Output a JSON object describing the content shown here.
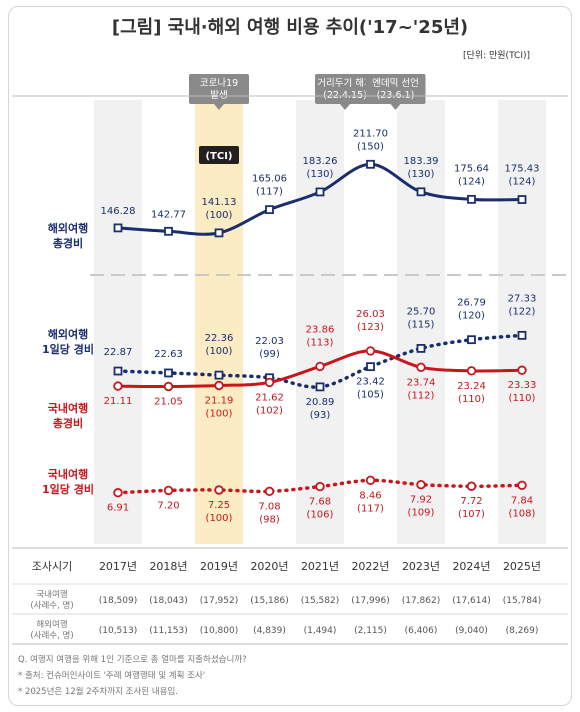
{
  "title": "[그림] 국내·해외 여행 비용 추이('17~'25년)",
  "unit": "[단위: 만원(TCI)]",
  "callouts": {
    "covid": [
      "코로나19",
      "발생"
    ],
    "distancing": [
      "거리두기 해제",
      "(22.4.15)"
    ],
    "endemic": [
      "엔데믹 선언",
      "(23.6.1)"
    ],
    "tci": "(TCI)"
  },
  "colors": {
    "overseas": "#1a2e6e",
    "domestic": "#c8161d",
    "highlight": "#fbecc4",
    "band": "#f1f1f1"
  },
  "chart_data": {
    "type": "line",
    "categories": [
      "2017년",
      "2018년",
      "2019년",
      "2020년",
      "2021년",
      "2022년",
      "2023년",
      "2024년",
      "2025년"
    ],
    "highlight_year": "2019년",
    "series": [
      {
        "name": "해외여행 총경비",
        "label_lines": [
          "해외여행",
          "총경비"
        ],
        "style": "solid",
        "color_key": "overseas",
        "values": [
          146.28,
          142.77,
          141.13,
          165.06,
          183.26,
          211.7,
          183.39,
          175.64,
          175.43
        ],
        "tci": [
          "",
          "",
          "(100)",
          "(117)",
          "(130)",
          "(150)",
          "(130)",
          "(124)",
          "(124)"
        ]
      },
      {
        "name": "해외여행 1일당 경비",
        "label_lines": [
          "해외여행",
          "1일당 경비"
        ],
        "style": "dotted",
        "color_key": "overseas",
        "values": [
          22.87,
          22.63,
          22.36,
          22.03,
          20.89,
          23.42,
          25.7,
          26.79,
          27.33
        ],
        "tci": [
          "",
          "",
          "(100)",
          "(99)",
          "(93)",
          "(105)",
          "(115)",
          "(120)",
          "(122)"
        ]
      },
      {
        "name": "국내여행 총경비",
        "label_lines": [
          "국내여행",
          "총경비"
        ],
        "style": "solid",
        "color_key": "domestic",
        "values": [
          21.11,
          21.05,
          21.19,
          21.62,
          23.86,
          26.03,
          23.74,
          23.24,
          23.33
        ],
        "tci": [
          "",
          "",
          "(100)",
          "(102)",
          "(113)",
          "(123)",
          "(112)",
          "(110)",
          "(110)"
        ]
      },
      {
        "name": "국내여행 1일당 경비",
        "label_lines": [
          "국내여행",
          "1일당 경비"
        ],
        "style": "dotted",
        "color_key": "domestic",
        "values": [
          6.91,
          7.2,
          7.25,
          7.08,
          7.68,
          8.46,
          7.92,
          7.72,
          7.84
        ],
        "tci": [
          "",
          "",
          "(100)",
          "(98)",
          "(106)",
          "(117)",
          "(109)",
          "(107)",
          "(108)"
        ]
      }
    ]
  },
  "table": {
    "header": "조사시기",
    "rows": [
      {
        "label": [
          "국내여행",
          "(사례수, 명)"
        ],
        "values": [
          "(18,509)",
          "(18,043)",
          "(17,952)",
          "(15,186)",
          "(15,582)",
          "(17,996)",
          "(17,862)",
          "(17,614)",
          "(15,784)"
        ]
      },
      {
        "label": [
          "해외여행",
          "(사례수, 명)"
        ],
        "values": [
          "(10,513)",
          "(11,153)",
          "(10,800)",
          "(4,839)",
          "(1,494)",
          "(2,115)",
          "(6,406)",
          "(9,040)",
          "(8,269)"
        ]
      }
    ]
  },
  "notes": [
    "Q. 여행지 여행을 위해 1인 기준으로 총 얼마를 지출하셨습니까?",
    "* 출처: 컨슈머인사이트 '주례 여행행태 및 계획 조사'",
    "* 2025년은 12월 2주차까지 조사된 내용임."
  ]
}
